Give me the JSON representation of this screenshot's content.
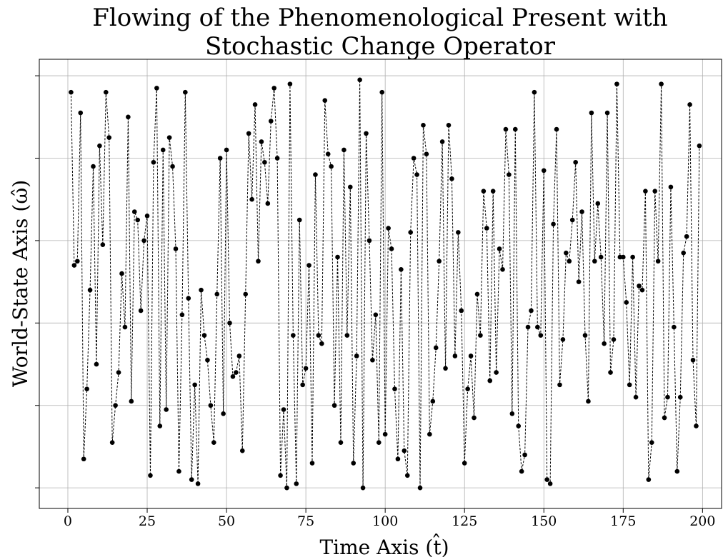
{
  "chart_data": {
    "type": "line",
    "title": [
      "Flowing of the Phenomenological Present with",
      "Stochastic Change Operator"
    ],
    "xlabel": "Time Axis (t̂)",
    "ylabel": "World-State Axis (ω̂)",
    "xlim": [
      -9,
      206
    ],
    "xticks": [
      0,
      25,
      50,
      75,
      100,
      125,
      150,
      175,
      200
    ],
    "ylim": [
      -0.05,
      1.04
    ],
    "yticks": [
      0,
      0.2,
      0.4,
      0.6,
      0.8,
      1
    ],
    "grid": true,
    "x": [
      1,
      2,
      3,
      4,
      5,
      6,
      7,
      8,
      9,
      10,
      11,
      12,
      13,
      14,
      15,
      16,
      17,
      18,
      19,
      20,
      21,
      22,
      23,
      24,
      25,
      26,
      27,
      28,
      29,
      30,
      31,
      32,
      33,
      34,
      35,
      36,
      37,
      38,
      39,
      40,
      41,
      42,
      43,
      44,
      45,
      46,
      47,
      48,
      49,
      50,
      51,
      52,
      53,
      54,
      55,
      56,
      57,
      58,
      59,
      60,
      61,
      62,
      63,
      64,
      65,
      66,
      67,
      68,
      69,
      70,
      71,
      72,
      73,
      74,
      75,
      76,
      77,
      78,
      79,
      80,
      81,
      82,
      83,
      84,
      85,
      86,
      87,
      88,
      89,
      90,
      91,
      92,
      93,
      94,
      95,
      96,
      97,
      98,
      99,
      100,
      101,
      102,
      103,
      104,
      105,
      106,
      107,
      108,
      109,
      110,
      111,
      112,
      113,
      114,
      115,
      116,
      117,
      118,
      119,
      120,
      121,
      122,
      123,
      124,
      125,
      126,
      127,
      128,
      129,
      130,
      131,
      132,
      133,
      134,
      135,
      136,
      137,
      138,
      139,
      140,
      141,
      142,
      143,
      144,
      145,
      146,
      147,
      148,
      149,
      150,
      151,
      152,
      153,
      154,
      155,
      156,
      157,
      158,
      159,
      160,
      161,
      162,
      163,
      164,
      165,
      166,
      167,
      168,
      169,
      170,
      171,
      172,
      173,
      174,
      175,
      176,
      177,
      178,
      179,
      180,
      181,
      182,
      183,
      184,
      185,
      186,
      187,
      188,
      189,
      190,
      191,
      192,
      193,
      194,
      195,
      196,
      197,
      198,
      199
    ],
    "series": [
      {
        "color": "#000000",
        "values": [
          0.96,
          0.54,
          0.55,
          0.91,
          0.07,
          0.24,
          0.48,
          0.78,
          0.3,
          0.83,
          0.59,
          0.96,
          0.85,
          0.11,
          0.2,
          0.28,
          0.52,
          0.39,
          0.9,
          0.21,
          0.67,
          0.65,
          0.43,
          0.6,
          0.66,
          0.03,
          0.79,
          0.97,
          0.15,
          0.82,
          0.19,
          0.85,
          0.78,
          0.58,
          0.04,
          0.42,
          0.96,
          0.46,
          0.02,
          0.25,
          0.01,
          0.48,
          0.37,
          0.31,
          0.2,
          0.11,
          0.47,
          0.8,
          0.18,
          0.82,
          0.4,
          0.27,
          0.28,
          0.32,
          0.09,
          0.47,
          0.86,
          0.7,
          0.93,
          0.55,
          0.84,
          0.79,
          0.69,
          0.89,
          0.97,
          0.8,
          0.03,
          0.19,
          0.0,
          0.98,
          0.37,
          0.01,
          0.65,
          0.25,
          0.29,
          0.54,
          0.06,
          0.76,
          0.37,
          0.35,
          0.94,
          0.81,
          0.78,
          0.2,
          0.56,
          0.11,
          0.82,
          0.37,
          0.73,
          0.06,
          0.32,
          0.99,
          0.0,
          0.86,
          0.6,
          0.31,
          0.42,
          0.11,
          0.96,
          0.13,
          0.63,
          0.58,
          0.24,
          0.07,
          0.53,
          0.09,
          0.03,
          0.62,
          0.8,
          0.76,
          0.0,
          0.88,
          0.81,
          0.13,
          0.21,
          0.34,
          0.55,
          0.84,
          0.29,
          0.88,
          0.75,
          0.32,
          0.62,
          0.43,
          0.06,
          0.24,
          0.32,
          0.17,
          0.47,
          0.37,
          0.72,
          0.63,
          0.26,
          0.72,
          0.28,
          0.58,
          0.53,
          0.87,
          0.76,
          0.18,
          0.87,
          0.15,
          0.04,
          0.08,
          0.39,
          0.43,
          0.96,
          0.39,
          0.37,
          0.77,
          0.02,
          0.01,
          0.64,
          0.87,
          0.25,
          0.36,
          0.57,
          0.55,
          0.65,
          0.79,
          0.5,
          0.67,
          0.37,
          0.21,
          0.91,
          0.55,
          0.69,
          0.56,
          0.35,
          0.91,
          0.28,
          0.36,
          0.98,
          0.56,
          0.56,
          0.45,
          0.25,
          0.56,
          0.22,
          0.49,
          0.48,
          0.72,
          0.02,
          0.11,
          0.72,
          0.55,
          0.98,
          0.17,
          0.22,
          0.73,
          0.39,
          0.04,
          0.22,
          0.57,
          0.61,
          0.93,
          0.31,
          0.15,
          0.83
        ]
      }
    ]
  }
}
